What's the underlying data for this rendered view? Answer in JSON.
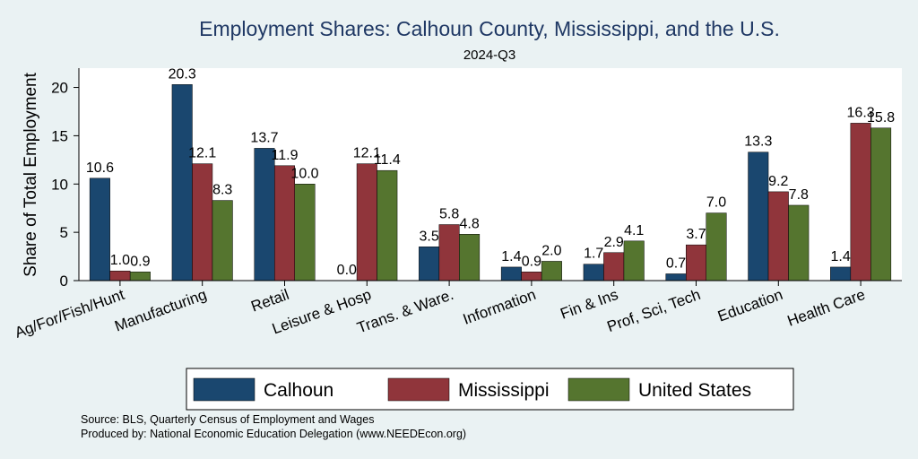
{
  "chart_data": {
    "type": "bar",
    "title": "Employment Shares: Calhoun County, Mississippi, and the U.S.",
    "subtitle": "2024-Q3",
    "ylabel": "Share of Total Employment",
    "xlabel": "",
    "ylim": [
      0,
      22
    ],
    "yticks": [
      0,
      5,
      10,
      15,
      20
    ],
    "grid": false,
    "legend_position": "bottom",
    "categories": [
      "Ag/For/Fish/Hunt",
      "Manufacturing",
      "Retail",
      "Leisure & Hosp",
      "Trans. & Ware.",
      "Information",
      "Fin & Ins",
      "Prof, Sci, Tech",
      "Education",
      "Health Care"
    ],
    "series": [
      {
        "name": "Calhoun",
        "color": "#1a476f",
        "values": [
          10.6,
          20.3,
          13.7,
          0.0,
          3.5,
          1.4,
          1.7,
          0.7,
          13.3,
          1.4
        ],
        "labels": [
          "10.6",
          "20.3",
          "13.7",
          "0.0",
          "3.5",
          "1.4",
          "1.7",
          "0.7",
          "13.3",
          "1.4"
        ]
      },
      {
        "name": "Mississippi",
        "color": "#90353b",
        "values": [
          1.0,
          12.1,
          11.9,
          12.1,
          5.8,
          0.9,
          2.9,
          3.7,
          9.2,
          16.3
        ],
        "labels": [
          "1.0",
          "12.1",
          "11.9",
          "12.1",
          "5.8",
          "0.9",
          "2.9",
          "3.7",
          "9.2",
          "16.3"
        ]
      },
      {
        "name": "United States",
        "color": "#55752f",
        "values": [
          0.9,
          8.3,
          10.0,
          11.4,
          4.8,
          2.0,
          4.1,
          7.0,
          7.8,
          15.8
        ],
        "labels": [
          "0.9",
          "8.3",
          "10.0",
          "11.4",
          "4.8",
          "2.0",
          "4.1",
          "7.0",
          "7.8",
          "15.8"
        ]
      }
    ],
    "notes": [
      "Source: BLS, Quarterly Census of Employment and Wages",
      "Produced by: National Economic Education Delegation (www.NEEDEcon.org)"
    ]
  }
}
